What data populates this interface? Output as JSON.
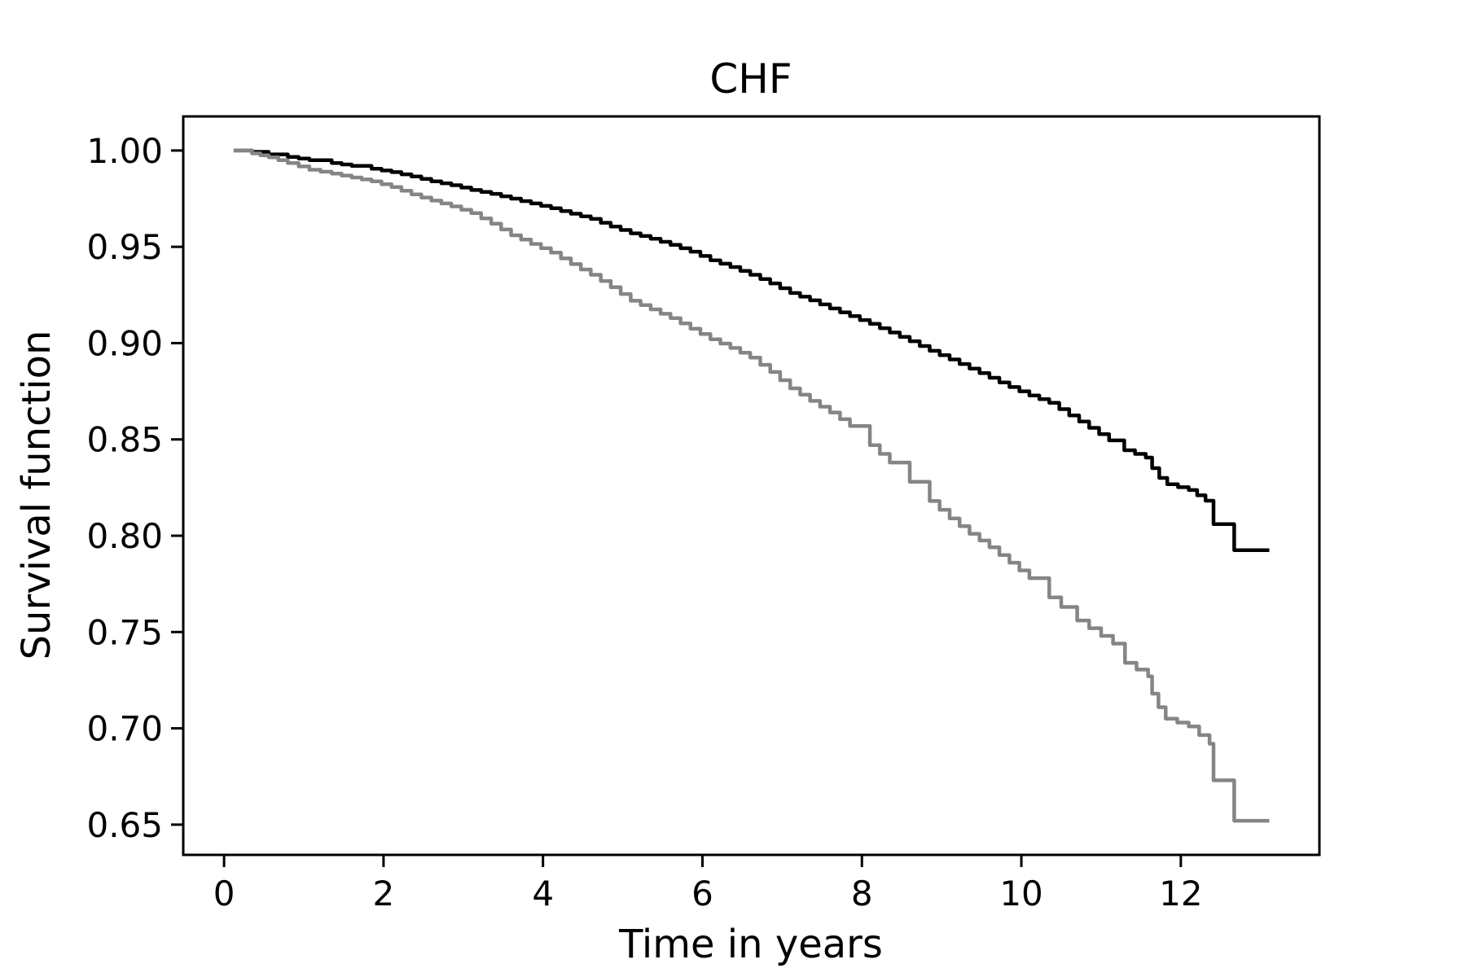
{
  "figure": {
    "title": "CHF",
    "xlabel": "Time in years",
    "ylabel": "Survival function",
    "background_color": "#ffffff",
    "axis_color": "#000000"
  },
  "chart_data": {
    "type": "line",
    "line_style": "step-post",
    "description": "Kaplan-Meier survival curves, two groups, no legend shown",
    "title": "CHF",
    "xlabel": "Time in years",
    "ylabel": "Survival function",
    "xlim": [
      -0.512,
      13.738
    ],
    "ylim": [
      0.6343,
      1.0177
    ],
    "xticks": [
      0,
      2,
      4,
      6,
      8,
      10,
      12
    ],
    "yticks": [
      0.65,
      0.7,
      0.75,
      0.8,
      0.85,
      0.9,
      0.95,
      1.0
    ],
    "ytick_decimals": 2,
    "grid": false,
    "legend_position": "none",
    "line_width": 4.5,
    "series": [
      {
        "name": "upper curve (black)",
        "color": "#000000",
        "points": [
          [
            0.12,
            1.0
          ],
          [
            0.35,
            0.9993
          ],
          [
            0.56,
            0.998
          ],
          [
            0.8,
            0.9967
          ],
          [
            1.07,
            0.995
          ],
          [
            1.35,
            0.9935
          ],
          [
            1.6,
            0.992
          ],
          [
            1.85,
            0.9905
          ],
          [
            2.1,
            0.9888
          ],
          [
            2.35,
            0.9865
          ],
          [
            2.6,
            0.984
          ],
          [
            2.85,
            0.982
          ],
          [
            3.1,
            0.9795
          ],
          [
            3.35,
            0.9775
          ],
          [
            3.6,
            0.975
          ],
          [
            3.85,
            0.9725
          ],
          [
            4.1,
            0.97
          ],
          [
            4.35,
            0.9672
          ],
          [
            4.6,
            0.9645
          ],
          [
            4.85,
            0.9605
          ],
          [
            5.1,
            0.957
          ],
          [
            5.35,
            0.9542
          ],
          [
            5.6,
            0.951
          ],
          [
            5.85,
            0.9475
          ],
          [
            6.1,
            0.943
          ],
          [
            6.35,
            0.9395
          ],
          [
            6.6,
            0.9355
          ],
          [
            6.85,
            0.931
          ],
          [
            7.1,
            0.926
          ],
          [
            7.35,
            0.9222
          ],
          [
            7.6,
            0.918
          ],
          [
            7.85,
            0.914
          ],
          [
            8.1,
            0.91
          ],
          [
            8.35,
            0.9055
          ],
          [
            8.6,
            0.901
          ],
          [
            8.85,
            0.896
          ],
          [
            9.1,
            0.8915
          ],
          [
            9.35,
            0.8868
          ],
          [
            9.6,
            0.882
          ],
          [
            9.85,
            0.8772
          ],
          [
            10.1,
            0.8728
          ],
          [
            10.35,
            0.869
          ],
          [
            10.6,
            0.8625
          ],
          [
            10.85,
            0.856
          ],
          [
            11.1,
            0.8495
          ],
          [
            11.29,
            0.8444
          ],
          [
            11.56,
            0.8406
          ],
          [
            11.64,
            0.8351
          ],
          [
            11.73,
            0.83
          ],
          [
            11.83,
            0.8267
          ],
          [
            12.1,
            0.8237
          ],
          [
            12.31,
            0.8182
          ],
          [
            12.41,
            0.806
          ],
          [
            12.67,
            0.7925
          ],
          [
            13.11,
            0.7925
          ]
        ]
      },
      {
        "name": "lower curve (gray)",
        "color": "#858585",
        "points": [
          [
            0.12,
            1.0
          ],
          [
            0.35,
            0.9985
          ],
          [
            0.56,
            0.9965
          ],
          [
            0.8,
            0.9935
          ],
          [
            1.07,
            0.99
          ],
          [
            1.35,
            0.988
          ],
          [
            1.6,
            0.986
          ],
          [
            1.85,
            0.984
          ],
          [
            2.1,
            0.981
          ],
          [
            2.35,
            0.9772
          ],
          [
            2.6,
            0.974
          ],
          [
            2.85,
            0.971
          ],
          [
            3.1,
            0.9675
          ],
          [
            3.35,
            0.962
          ],
          [
            3.6,
            0.956
          ],
          [
            3.85,
            0.9515
          ],
          [
            4.1,
            0.947
          ],
          [
            4.35,
            0.941
          ],
          [
            4.6,
            0.9355
          ],
          [
            4.85,
            0.929
          ],
          [
            5.1,
            0.922
          ],
          [
            5.35,
            0.9175
          ],
          [
            5.6,
            0.913
          ],
          [
            5.85,
            0.9075
          ],
          [
            6.1,
            0.902
          ],
          [
            6.35,
            0.8975
          ],
          [
            6.6,
            0.8925
          ],
          [
            6.85,
            0.885
          ],
          [
            7.1,
            0.8765
          ],
          [
            7.35,
            0.87
          ],
          [
            7.6,
            0.864
          ],
          [
            7.85,
            0.857
          ],
          [
            8.1,
            0.847
          ],
          [
            8.35,
            0.838
          ],
          [
            8.6,
            0.828
          ],
          [
            8.85,
            0.818
          ],
          [
            9.1,
            0.809
          ],
          [
            9.35,
            0.801
          ],
          [
            9.6,
            0.794
          ],
          [
            9.85,
            0.786
          ],
          [
            10.1,
            0.778
          ],
          [
            10.35,
            0.768
          ],
          [
            10.5,
            0.763
          ],
          [
            10.7,
            0.756
          ],
          [
            10.85,
            0.752
          ],
          [
            11.0,
            0.748
          ],
          [
            11.15,
            0.744
          ],
          [
            11.3,
            0.734
          ],
          [
            11.59,
            0.727
          ],
          [
            11.64,
            0.718
          ],
          [
            11.72,
            0.711
          ],
          [
            11.81,
            0.705
          ],
          [
            12.1,
            0.701
          ],
          [
            12.36,
            0.692
          ],
          [
            12.41,
            0.673
          ],
          [
            12.67,
            0.652
          ],
          [
            13.11,
            0.652
          ]
        ]
      }
    ]
  }
}
